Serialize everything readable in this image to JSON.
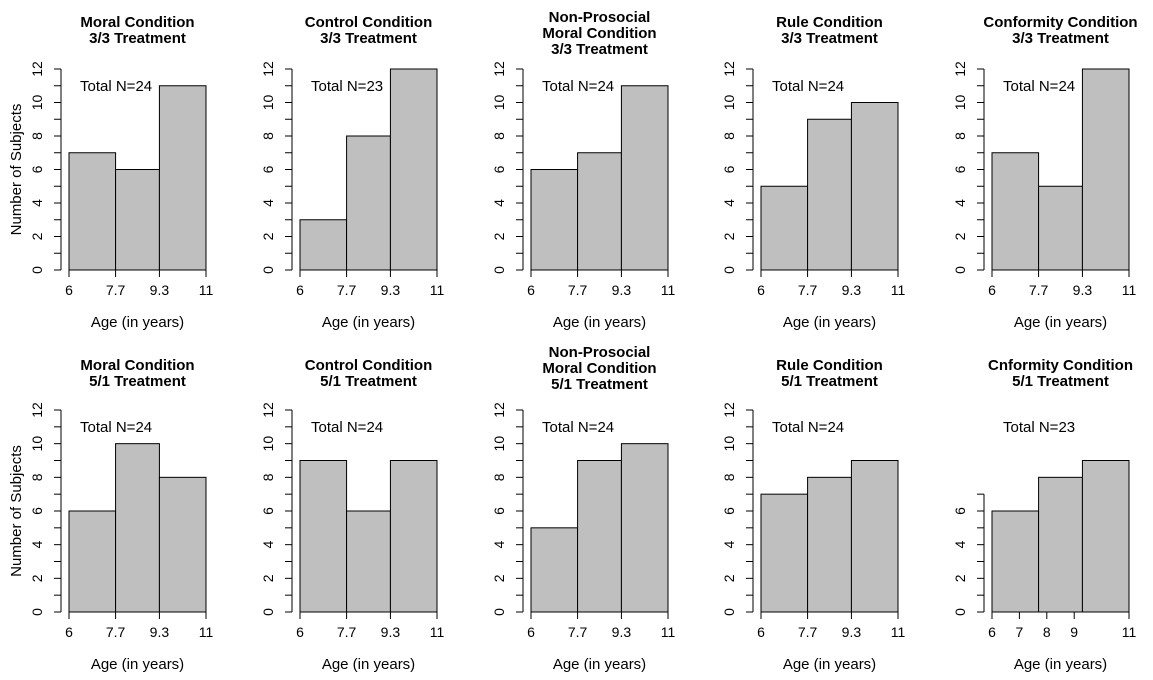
{
  "chart_data": [
    {
      "type": "bar",
      "title": [
        "Moral Condition",
        "3/3 Treatment"
      ],
      "xlabel": "Age (in years)",
      "ylabel": "Number of Subjects",
      "annotation": "Total N=24",
      "bins": [
        [
          6,
          7.7
        ],
        [
          7.7,
          9.3
        ],
        [
          9.3,
          11
        ]
      ],
      "values": [
        7,
        6,
        11
      ],
      "xticks": [
        6,
        7.7,
        9.3,
        11
      ],
      "xtick_labels": [
        "6",
        "7.7",
        "9.3",
        "11"
      ],
      "yticks": [
        0,
        2,
        4,
        6,
        8,
        10,
        12
      ],
      "yminor": [
        1,
        3,
        5,
        7,
        9,
        11
      ],
      "xlim": [
        6,
        11
      ],
      "ylim": [
        0,
        12
      ]
    },
    {
      "type": "bar",
      "title": [
        "Control Condition",
        "3/3 Treatment"
      ],
      "xlabel": "Age (in years)",
      "ylabel": "",
      "annotation": "Total N=23",
      "bins": [
        [
          6,
          7.7
        ],
        [
          7.7,
          9.3
        ],
        [
          9.3,
          11
        ]
      ],
      "values": [
        3,
        8,
        12
      ],
      "xticks": [
        6,
        7.7,
        9.3,
        11
      ],
      "xtick_labels": [
        "6",
        "7.7",
        "9.3",
        "11"
      ],
      "yticks": [
        0,
        2,
        4,
        6,
        8,
        10,
        12
      ],
      "yminor": [
        1,
        3,
        5,
        7,
        9,
        11
      ],
      "xlim": [
        6,
        11
      ],
      "ylim": [
        0,
        12
      ]
    },
    {
      "type": "bar",
      "title": [
        "Non-Prosocial",
        "Moral Condition",
        "3/3 Treatment"
      ],
      "xlabel": "Age (in years)",
      "ylabel": "",
      "annotation": "Total N=24",
      "bins": [
        [
          6,
          7.7
        ],
        [
          7.7,
          9.3
        ],
        [
          9.3,
          11
        ]
      ],
      "values": [
        6,
        7,
        11
      ],
      "xticks": [
        6,
        7.7,
        9.3,
        11
      ],
      "xtick_labels": [
        "6",
        "7.7",
        "9.3",
        "11"
      ],
      "yticks": [
        0,
        2,
        4,
        6,
        8,
        10,
        12
      ],
      "yminor": [
        1,
        3,
        5,
        7,
        9,
        11
      ],
      "xlim": [
        6,
        11
      ],
      "ylim": [
        0,
        12
      ]
    },
    {
      "type": "bar",
      "title": [
        "Rule Condition",
        "3/3 Treatment"
      ],
      "xlabel": "Age (in years)",
      "ylabel": "",
      "annotation": "Total N=24",
      "bins": [
        [
          6,
          7.7
        ],
        [
          7.7,
          9.3
        ],
        [
          9.3,
          11
        ]
      ],
      "values": [
        5,
        9,
        10
      ],
      "xticks": [
        6,
        7.7,
        9.3,
        11
      ],
      "xtick_labels": [
        "6",
        "7.7",
        "9.3",
        "11"
      ],
      "yticks": [
        0,
        2,
        4,
        6,
        8,
        10,
        12
      ],
      "yminor": [
        1,
        3,
        5,
        7,
        9,
        11
      ],
      "xlim": [
        6,
        11
      ],
      "ylim": [
        0,
        12
      ]
    },
    {
      "type": "bar",
      "title": [
        "Conformity Condition",
        "3/3 Treatment"
      ],
      "xlabel": "Age (in years)",
      "ylabel": "",
      "annotation": "Total N=24",
      "bins": [
        [
          6,
          7.7
        ],
        [
          7.7,
          9.3
        ],
        [
          9.3,
          11
        ]
      ],
      "values": [
        7,
        5,
        12
      ],
      "xticks": [
        6,
        7.7,
        9.3,
        11
      ],
      "xtick_labels": [
        "6",
        "7.7",
        "9.3",
        "11"
      ],
      "yticks": [
        0,
        2,
        4,
        6,
        8,
        10,
        12
      ],
      "yminor": [
        1,
        3,
        5,
        7,
        9,
        11
      ],
      "xlim": [
        6,
        11
      ],
      "ylim": [
        0,
        12
      ]
    },
    {
      "type": "bar",
      "title": [
        "Moral Condition",
        "5/1 Treatment"
      ],
      "xlabel": "Age (in years)",
      "ylabel": "Number of Subjects",
      "annotation": "Total N=24",
      "bins": [
        [
          6,
          7.7
        ],
        [
          7.7,
          9.3
        ],
        [
          9.3,
          11
        ]
      ],
      "values": [
        6,
        10,
        8
      ],
      "xticks": [
        6,
        7.7,
        9.3,
        11
      ],
      "xtick_labels": [
        "6",
        "7.7",
        "9.3",
        "11"
      ],
      "yticks": [
        0,
        2,
        4,
        6,
        8,
        10,
        12
      ],
      "yminor": [
        1,
        3,
        5,
        7,
        9,
        11
      ],
      "xlim": [
        6,
        11
      ],
      "ylim": [
        0,
        12
      ]
    },
    {
      "type": "bar",
      "title": [
        "Control Condition",
        "5/1 Treatment"
      ],
      "xlabel": "Age (in years)",
      "ylabel": "",
      "annotation": "Total N=24",
      "bins": [
        [
          6,
          7.7
        ],
        [
          7.7,
          9.3
        ],
        [
          9.3,
          11
        ]
      ],
      "values": [
        9,
        6,
        9
      ],
      "xticks": [
        6,
        7.7,
        9.3,
        11
      ],
      "xtick_labels": [
        "6",
        "7.7",
        "9.3",
        "11"
      ],
      "yticks": [
        0,
        2,
        4,
        6,
        8,
        10,
        12
      ],
      "yminor": [
        1,
        3,
        5,
        7,
        9,
        11
      ],
      "xlim": [
        6,
        11
      ],
      "ylim": [
        0,
        12
      ]
    },
    {
      "type": "bar",
      "title": [
        "Non-Prosocial",
        "Moral Condition",
        "5/1 Treatment"
      ],
      "xlabel": "Age (in years)",
      "ylabel": "",
      "annotation": "Total N=24",
      "bins": [
        [
          6,
          7.7
        ],
        [
          7.7,
          9.3
        ],
        [
          9.3,
          11
        ]
      ],
      "values": [
        5,
        9,
        10
      ],
      "xticks": [
        6,
        7.7,
        9.3,
        11
      ],
      "xtick_labels": [
        "6",
        "7.7",
        "9.3",
        "11"
      ],
      "yticks": [
        0,
        2,
        4,
        6,
        8,
        10,
        12
      ],
      "yminor": [
        1,
        3,
        5,
        7,
        9,
        11
      ],
      "xlim": [
        6,
        11
      ],
      "ylim": [
        0,
        12
      ]
    },
    {
      "type": "bar",
      "title": [
        "Rule Condition",
        "5/1 Treatment"
      ],
      "xlabel": "Age (in years)",
      "ylabel": "",
      "annotation": "Total N=24",
      "bins": [
        [
          6,
          7.7
        ],
        [
          7.7,
          9.3
        ],
        [
          9.3,
          11
        ]
      ],
      "values": [
        7,
        8,
        9
      ],
      "xticks": [
        6,
        7.7,
        9.3,
        11
      ],
      "xtick_labels": [
        "6",
        "7.7",
        "9.3",
        "11"
      ],
      "yticks": [
        0,
        2,
        4,
        6,
        8,
        10,
        12
      ],
      "yminor": [
        1,
        3,
        5,
        7,
        9,
        11
      ],
      "xlim": [
        6,
        11
      ],
      "ylim": [
        0,
        12
      ]
    },
    {
      "type": "bar",
      "title": [
        "Cnformity Condition",
        "5/1 Treatment"
      ],
      "xlabel": "Age (in years)",
      "ylabel": "",
      "annotation": "Total N=23",
      "bins": [
        [
          6,
          7.7
        ],
        [
          7.7,
          9.3
        ],
        [
          9.3,
          11
        ]
      ],
      "values": [
        6,
        8,
        9
      ],
      "xticks": [
        6,
        7,
        8,
        9,
        11
      ],
      "xtick_labels": [
        "6",
        "7",
        "8",
        "9",
        "11"
      ],
      "yticks": [
        0,
        2,
        4,
        6
      ],
      "yminor": [
        1,
        3,
        5,
        7
      ],
      "xlim": [
        6,
        11
      ],
      "ylim": [
        0,
        12
      ]
    }
  ]
}
